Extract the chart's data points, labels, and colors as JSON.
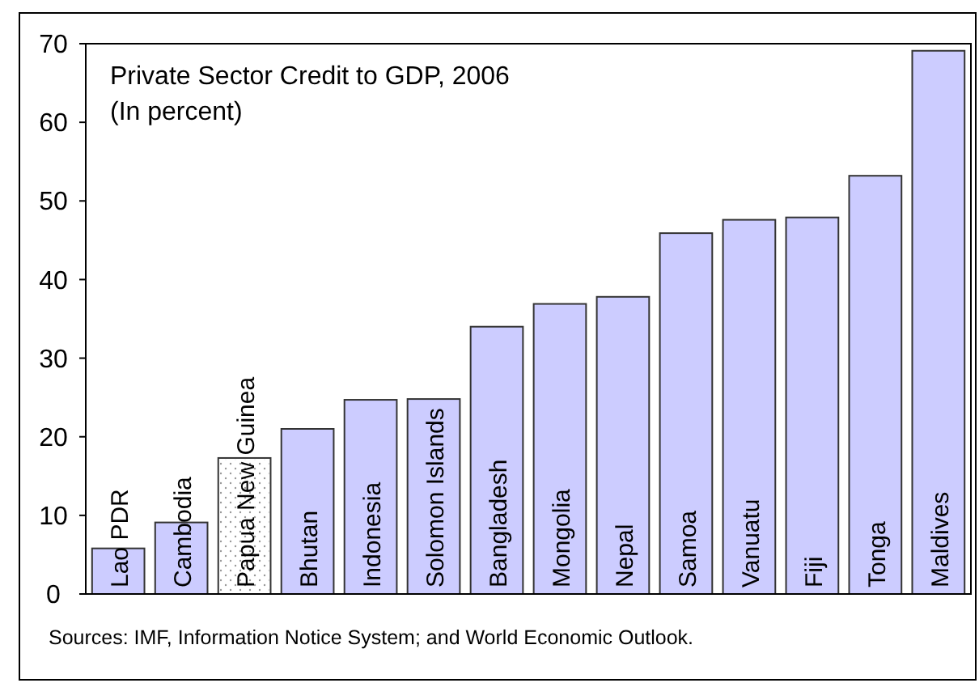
{
  "chart_data": {
    "type": "bar",
    "title": "Private Sector Credit to GDP, 2006",
    "subtitle": "(In percent)",
    "categories": [
      "Lao PDR",
      "Cambodia",
      "Papua New Guinea",
      "Bhutan",
      "Indonesia",
      "Solomon Islands",
      "Bangladesh",
      "Mongolia",
      "Nepal",
      "Samoa",
      "Vanuatu",
      "Fiji",
      "Tonga",
      "Maldives"
    ],
    "values": [
      5.8,
      9.1,
      17.3,
      21.0,
      24.7,
      24.8,
      34.0,
      36.9,
      37.8,
      45.9,
      47.6,
      47.9,
      53.2,
      69.1
    ],
    "colors": [
      "#ccccff",
      "#ccccff",
      "#ffffff",
      "#ccccff",
      "#ccccff",
      "#ccccff",
      "#ccccff",
      "#ccccff",
      "#ccccff",
      "#ccccff",
      "#ccccff",
      "#ccccff",
      "#ccccff",
      "#ccccff"
    ],
    "ylim": [
      0,
      70
    ],
    "yticks": [
      0,
      10,
      20,
      30,
      40,
      50,
      60,
      70
    ],
    "grid": false,
    "annotations": [
      "Sources: IMF, Information Notice System; and World Economic Outlook."
    ]
  }
}
